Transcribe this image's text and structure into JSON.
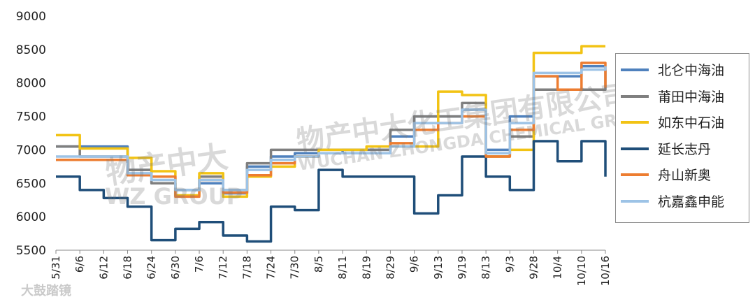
{
  "chart_data": {
    "type": "line",
    "ylim": [
      5500,
      9000
    ],
    "yticks": [
      5500,
      6000,
      6500,
      7000,
      7500,
      8000,
      8500,
      9000
    ],
    "x": [
      "5/31",
      "6/6",
      "6/12",
      "6/18",
      "6/24",
      "6/30",
      "7/6",
      "7/12",
      "7/18",
      "7/24",
      "7/30",
      "8/5",
      "8/11",
      "8/19",
      "8/29",
      "9/6",
      "9/13",
      "9/19",
      "8/13",
      "9/3",
      "9/28",
      "10/4",
      "10/10",
      "10/16"
    ],
    "legend_position": "right",
    "grid": false,
    "series": [
      {
        "name": "北仑中海油",
        "color": "#4f81bd",
        "values": [
          7050,
          7050,
          7050,
          6700,
          6500,
          6400,
          6500,
          6350,
          6750,
          6900,
          6950,
          6950,
          7000,
          7000,
          7200,
          7500,
          7500,
          7600,
          7000,
          7500,
          8100,
          8100,
          8250,
          8250
        ]
      },
      {
        "name": "莆田中海油",
        "color": "#7f7f7f",
        "values": [
          7050,
          6900,
          6900,
          6700,
          6500,
          6400,
          6600,
          6400,
          6800,
          7000,
          7000,
          7000,
          7000,
          7000,
          7300,
          7500,
          7500,
          7700,
          6900,
          7200,
          7900,
          7900,
          7900,
          8200
        ]
      },
      {
        "name": "如东中石油",
        "color": "#f2c314",
        "values": [
          7220,
          7020,
          7020,
          6880,
          6680,
          6320,
          6650,
          6300,
          6600,
          6750,
          6900,
          7000,
          7000,
          7050,
          7050,
          7050,
          7870,
          7820,
          6900,
          7000,
          8450,
          8450,
          8550,
          8550
        ]
      },
      {
        "name": "延长志丹",
        "color": "#1f4e79",
        "values": [
          6600,
          6400,
          6280,
          6150,
          5650,
          5820,
          5920,
          5720,
          5630,
          6150,
          6100,
          6700,
          6600,
          6600,
          6600,
          6050,
          6320,
          6900,
          6600,
          6400,
          7130,
          6830,
          7130,
          6600
        ]
      },
      {
        "name": "舟山新奥",
        "color": "#ed7d31",
        "values": [
          6850,
          6850,
          6850,
          6620,
          6600,
          6300,
          6550,
          6360,
          6620,
          6800,
          6900,
          6950,
          6950,
          6950,
          7100,
          7300,
          7400,
          7500,
          6900,
          7300,
          8100,
          7900,
          8300,
          7930
        ]
      },
      {
        "name": "杭嘉鑫申能",
        "color": "#9dc3e6",
        "values": [
          6900,
          6900,
          6900,
          6650,
          6550,
          6400,
          6550,
          6400,
          6700,
          6850,
          6900,
          6950,
          6950,
          6950,
          7050,
          7400,
          7400,
          7600,
          6950,
          7400,
          8150,
          8150,
          8200,
          8250
        ]
      }
    ]
  },
  "watermark": {
    "logo_text": "物产中大",
    "logo_sub": "WZ GROUP",
    "company": "物产中大化工集团有限公司",
    "company_en": "WUCHAN ZHONGDA CHEMICAL GROUP CO.,LTD.",
    "corner": "大鼓踏镜"
  }
}
